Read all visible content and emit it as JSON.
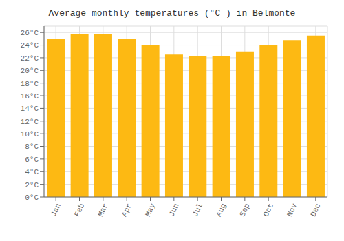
{
  "chart_data": {
    "type": "bar",
    "title": "Average monthly temperatures (°C ) in Belmonte",
    "categories": [
      "Jan",
      "Feb",
      "Mar",
      "Apr",
      "May",
      "Jun",
      "Jul",
      "Aug",
      "Sep",
      "Oct",
      "Nov",
      "Dec"
    ],
    "values": [
      25.0,
      25.8,
      25.8,
      25.0,
      24.0,
      22.5,
      22.2,
      22.2,
      23.0,
      24.0,
      24.8,
      25.5
    ],
    "color": "#FDB913",
    "ylim": [
      0,
      27
    ],
    "yticks": [
      {
        "value": 0,
        "label": "0°C"
      },
      {
        "value": 2,
        "label": "2°C"
      },
      {
        "value": 4,
        "label": "4°C"
      },
      {
        "value": 6,
        "label": "6°C"
      },
      {
        "value": 8,
        "label": "8°C"
      },
      {
        "value": 10,
        "label": "10°C"
      },
      {
        "value": 12,
        "label": "12°C"
      },
      {
        "value": 14,
        "label": "14°C"
      },
      {
        "value": 16,
        "label": "16°C"
      },
      {
        "value": 18,
        "label": "18°C"
      },
      {
        "value": 20,
        "label": "20°C"
      },
      {
        "value": 22,
        "label": "22°C"
      },
      {
        "value": 24,
        "label": "24°C"
      },
      {
        "value": 26,
        "label": "26°C"
      }
    ],
    "grid": true
  }
}
